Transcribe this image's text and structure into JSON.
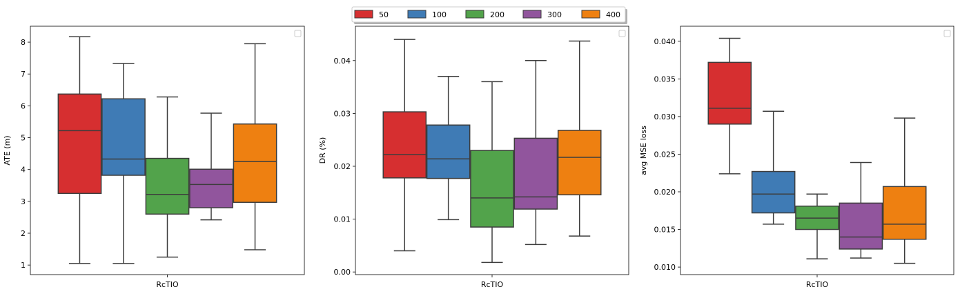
{
  "legend": {
    "placement": "top-center",
    "entries": [
      {
        "name": "50",
        "color": "#d62f30"
      },
      {
        "name": "100",
        "color": "#3f7bb5"
      },
      {
        "name": "200",
        "color": "#52a34b"
      },
      {
        "name": "300",
        "color": "#91559d"
      },
      {
        "name": "400",
        "color": "#ee8011"
      }
    ]
  },
  "chart_data": [
    {
      "type": "box",
      "category": "RcTIO",
      "xlabel": "RcTIO",
      "ylabel": "ATE (m)",
      "ylim": [
        0.7,
        8.5
      ],
      "yticks": [
        {
          "value": 1,
          "label": "1"
        },
        {
          "value": 2,
          "label": "2"
        },
        {
          "value": 3,
          "label": "3"
        },
        {
          "value": 4,
          "label": "4"
        },
        {
          "value": 5,
          "label": "5"
        },
        {
          "value": 6,
          "label": "6"
        },
        {
          "value": 7,
          "label": "7"
        },
        {
          "value": 8,
          "label": "8"
        }
      ],
      "series": [
        {
          "name": "50",
          "min": 1.05,
          "q1": 3.25,
          "median": 5.22,
          "q3": 6.37,
          "max": 8.17
        },
        {
          "name": "100",
          "min": 1.05,
          "q1": 3.82,
          "median": 4.33,
          "q3": 6.22,
          "max": 7.33
        },
        {
          "name": "200",
          "min": 1.25,
          "q1": 2.6,
          "median": 3.22,
          "q3": 4.35,
          "max": 6.28
        },
        {
          "name": "300",
          "min": 2.42,
          "q1": 2.8,
          "median": 3.53,
          "q3": 4.01,
          "max": 5.77
        },
        {
          "name": "400",
          "min": 1.48,
          "q1": 2.97,
          "median": 4.25,
          "q3": 5.43,
          "max": 7.95
        }
      ]
    },
    {
      "type": "box",
      "category": "RcTIO",
      "xlabel": "RcTIO",
      "ylabel": "DR (%)",
      "ylim": [
        -0.0005,
        0.0465
      ],
      "yticks": [
        {
          "value": 0.0,
          "label": "0.00"
        },
        {
          "value": 0.01,
          "label": "0.01"
        },
        {
          "value": 0.02,
          "label": "0.02"
        },
        {
          "value": 0.03,
          "label": "0.03"
        },
        {
          "value": 0.04,
          "label": "0.04"
        }
      ],
      "series": [
        {
          "name": "50",
          "min": 0.004,
          "q1": 0.0178,
          "median": 0.0222,
          "q3": 0.0303,
          "max": 0.044
        },
        {
          "name": "100",
          "min": 0.0099,
          "q1": 0.0177,
          "median": 0.0214,
          "q3": 0.0278,
          "max": 0.037
        },
        {
          "name": "200",
          "min": 0.0018,
          "q1": 0.0085,
          "median": 0.014,
          "q3": 0.023,
          "max": 0.036
        },
        {
          "name": "300",
          "min": 0.0052,
          "q1": 0.0119,
          "median": 0.0142,
          "q3": 0.0253,
          "max": 0.04
        },
        {
          "name": "400",
          "min": 0.0068,
          "q1": 0.0146,
          "median": 0.0217,
          "q3": 0.0268,
          "max": 0.0437
        }
      ]
    },
    {
      "type": "box",
      "category": "RcTIO",
      "xlabel": "RcTIO",
      "ylabel": "avg MSE loss",
      "ylim": [
        0.009,
        0.042
      ],
      "yticks": [
        {
          "value": 0.01,
          "label": "0.010"
        },
        {
          "value": 0.015,
          "label": "0.015"
        },
        {
          "value": 0.02,
          "label": "0.020"
        },
        {
          "value": 0.025,
          "label": "0.025"
        },
        {
          "value": 0.03,
          "label": "0.030"
        },
        {
          "value": 0.035,
          "label": "0.035"
        },
        {
          "value": 0.04,
          "label": "0.040"
        }
      ],
      "series": [
        {
          "name": "50",
          "min": 0.0224,
          "q1": 0.029,
          "median": 0.0311,
          "q3": 0.0372,
          "max": 0.0404
        },
        {
          "name": "100",
          "min": 0.0157,
          "q1": 0.0172,
          "median": 0.0197,
          "q3": 0.0227,
          "max": 0.0307
        },
        {
          "name": "200",
          "min": 0.0111,
          "q1": 0.015,
          "median": 0.0165,
          "q3": 0.0181,
          "max": 0.0197
        },
        {
          "name": "300",
          "min": 0.0112,
          "q1": 0.0124,
          "median": 0.014,
          "q3": 0.0185,
          "max": 0.0239
        },
        {
          "name": "400",
          "min": 0.0105,
          "q1": 0.0137,
          "median": 0.0157,
          "q3": 0.0207,
          "max": 0.0298
        }
      ]
    }
  ]
}
